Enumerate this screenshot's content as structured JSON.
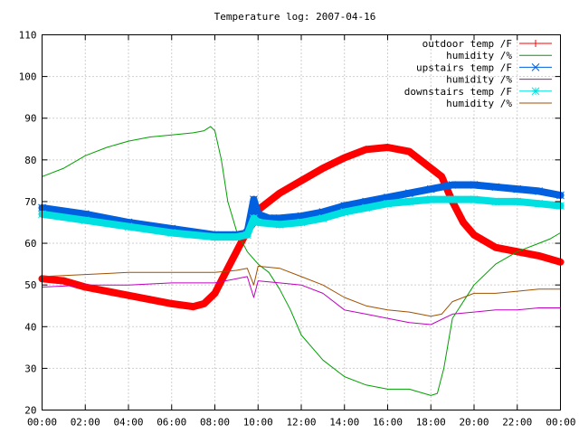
{
  "chart_data": {
    "type": "line",
    "title": "Temperature log: 2007-04-16",
    "xlabel": "",
    "ylabel": "",
    "xlim": [
      0,
      24
    ],
    "ylim": [
      20,
      110
    ],
    "grid": true,
    "legend_position": "top-right",
    "x_tick_labels": [
      "00:00",
      "02:00",
      "04:00",
      "06:00",
      "08:00",
      "10:00",
      "12:00",
      "14:00",
      "16:00",
      "18:00",
      "20:00",
      "22:00",
      "00:00"
    ],
    "y_tick_labels": [
      "20",
      "30",
      "40",
      "50",
      "60",
      "70",
      "80",
      "90",
      "100",
      "110"
    ],
    "series": [
      {
        "name": "outdoor temp /F",
        "color": "#ff0000",
        "marker": "plus",
        "x": [
          0,
          1,
          2,
          3,
          4,
          5,
          6,
          7,
          7.5,
          8,
          8.5,
          9,
          9.5,
          9.8,
          10,
          11,
          12,
          13,
          14,
          15,
          16,
          17,
          18,
          18.5,
          19,
          19.5,
          20,
          21,
          22,
          23,
          24
        ],
        "y": [
          51.5,
          51,
          49.5,
          48.5,
          47.5,
          46.5,
          45.5,
          44.8,
          45.5,
          48,
          53,
          58,
          63,
          65,
          68,
          72,
          75,
          78,
          80.5,
          82.5,
          83,
          82,
          78,
          76,
          70,
          65,
          62,
          59,
          58,
          57,
          55.5
        ]
      },
      {
        "name": "humidity /%",
        "color": "#00a000",
        "marker": "none",
        "x": [
          0,
          1,
          2,
          3,
          4,
          5,
          6,
          7,
          7.5,
          7.8,
          8,
          8.3,
          8.6,
          9,
          9.5,
          10,
          10.5,
          11,
          11.5,
          12,
          13,
          14,
          15,
          16,
          17,
          18,
          18.3,
          18.6,
          19,
          20,
          21,
          22,
          23,
          23.5,
          24
        ],
        "y": [
          76,
          78,
          81,
          83,
          84.5,
          85.5,
          86,
          86.5,
          87,
          88,
          87,
          80,
          70,
          63,
          58,
          55,
          53,
          49,
          44,
          38,
          32,
          28,
          26,
          25,
          25,
          23.5,
          24,
          30,
          42,
          50,
          55,
          58,
          60,
          61,
          62.5
        ]
      },
      {
        "name": "upstairs temp /F",
        "color": "#0060e0",
        "marker": "x",
        "x": [
          0,
          2,
          4,
          6,
          8,
          9,
          9.5,
          9.8,
          10,
          10.5,
          11,
          12,
          13,
          14,
          15,
          16,
          17,
          18,
          19,
          20,
          21,
          22,
          23,
          24
        ],
        "y": [
          68.5,
          67,
          65,
          63.5,
          62,
          62,
          62.5,
          70.5,
          67,
          66,
          66,
          66.5,
          67.5,
          69,
          70,
          71,
          72,
          73,
          74,
          74,
          73.5,
          73,
          72.5,
          71.5
        ]
      },
      {
        "name": "humidity /%",
        "color": "#c000c0",
        "marker": "none",
        "x": [
          0,
          2,
          4,
          6,
          8,
          9,
          9.5,
          9.8,
          10,
          11,
          12,
          13,
          14,
          15,
          16,
          17,
          18,
          19,
          20,
          21,
          22,
          23,
          24
        ],
        "y": [
          49.5,
          50,
          50,
          50.5,
          50.5,
          51.5,
          52,
          47,
          51,
          50.5,
          50,
          48,
          44,
          43,
          42,
          41,
          40.5,
          43,
          43.5,
          44,
          44,
          44.5,
          44.5
        ]
      },
      {
        "name": "downstairs temp /F",
        "color": "#00e0e0",
        "marker": "star",
        "x": [
          0,
          2,
          4,
          6,
          8,
          9,
          9.5,
          9.8,
          10,
          11,
          12,
          13,
          14,
          15,
          16,
          17,
          18,
          19,
          20,
          21,
          22,
          23,
          24
        ],
        "y": [
          67,
          65.5,
          64,
          62.5,
          61.5,
          61.5,
          62,
          66,
          65,
          64.5,
          65,
          66,
          67.5,
          68.5,
          69.5,
          70,
          70.5,
          70.5,
          70.5,
          70,
          70,
          69.5,
          69
        ]
      },
      {
        "name": "humidity /%",
        "color": "#a05000",
        "marker": "none",
        "x": [
          0,
          2,
          4,
          6,
          8,
          9,
          9.5,
          9.8,
          10,
          11,
          12,
          13,
          14,
          15,
          16,
          17,
          18,
          18.5,
          19,
          20,
          21,
          22,
          23,
          24
        ],
        "y": [
          52,
          52.5,
          53,
          53,
          53,
          53.5,
          54,
          50,
          54.5,
          54,
          52,
          50,
          47,
          45,
          44,
          43.5,
          42.5,
          43,
          46,
          48,
          48,
          48.5,
          49,
          49
        ]
      }
    ]
  }
}
